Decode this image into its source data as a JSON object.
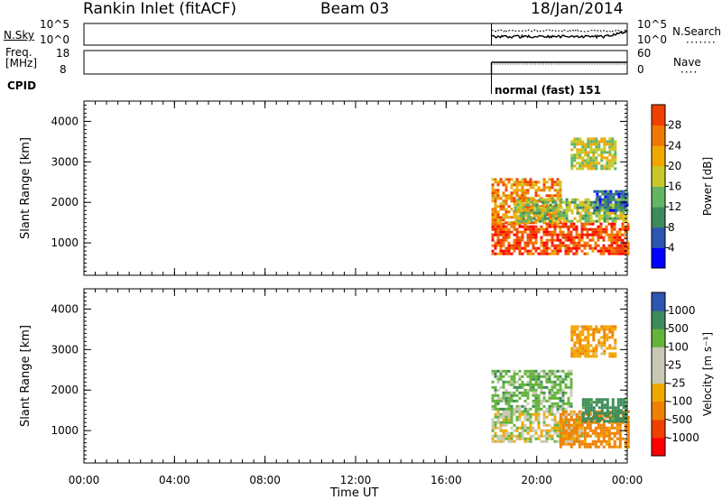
{
  "header": {
    "station": "Rankin Inlet (fitACF)",
    "beam": "Beam 03",
    "date": "18/Jan/2014"
  },
  "noise_panel": {
    "left_label": "N.Sky",
    "right_label": "N.Search",
    "y_ticks_left": [
      "10^5",
      "10^0"
    ],
    "y_ticks_right": [
      "10^5",
      "10^0"
    ]
  },
  "freq_panel": {
    "left_label_line1": "Freq.",
    "left_label_line2": "[MHz]",
    "right_label": "Nave",
    "y_ticks_left": [
      "18",
      "8"
    ],
    "y_ticks_right": [
      "60",
      "0"
    ]
  },
  "cpid_panel": {
    "label": "CPID",
    "mode_text": "normal (fast) 151"
  },
  "x_axis": {
    "label": "Time UT",
    "ticks": [
      "00:00",
      "04:00",
      "08:00",
      "12:00",
      "16:00",
      "20:00",
      "00:00"
    ]
  },
  "y_axis": {
    "label": "Slant Range [km]",
    "ticks": [
      "1000",
      "2000",
      "3000",
      "4000"
    ]
  },
  "colors": {
    "power_scale": [
      "#0000ff",
      "#2c56b0",
      "#3c8c5a",
      "#64b464",
      "#c8c828",
      "#f0a800",
      "#f07800",
      "#f04000",
      "#ff0000"
    ],
    "velocity_scale": [
      "#ff0000",
      "#f04000",
      "#f08000",
      "#f0a800",
      "#c8c8b4",
      "#c8c8b4",
      "#64b43c",
      "#3c8c5a",
      "#2c56b0",
      "#1e3cc8"
    ]
  },
  "chart_data": [
    {
      "type": "heatmap",
      "title": "Power",
      "xlabel": "Time UT",
      "ylabel": "Slant Range [km]",
      "xlim": [
        "00:00",
        "24:00"
      ],
      "ylim": [
        200,
        4500
      ],
      "colorbar": {
        "label": "Power [dB]",
        "ticks": [
          "4",
          "8",
          "12",
          "16",
          "20",
          "24",
          "28"
        ],
        "range": [
          0,
          32
        ]
      },
      "observation_start": "18:00",
      "regions": [
        {
          "t_start": 18.0,
          "t_end": 24.0,
          "r_start": 700,
          "r_end": 1500,
          "value": 26
        },
        {
          "t_start": 18.0,
          "t_end": 21.0,
          "r_start": 1500,
          "r_end": 2600,
          "value": 22
        },
        {
          "t_start": 19.0,
          "t_end": 24.0,
          "r_start": 1500,
          "r_end": 2100,
          "value": 14
        },
        {
          "t_start": 21.5,
          "t_end": 23.5,
          "r_start": 2800,
          "r_end": 3600,
          "value": 16
        },
        {
          "t_start": 22.5,
          "t_end": 24.0,
          "r_start": 1800,
          "r_end": 2300,
          "value": 7
        }
      ]
    },
    {
      "type": "heatmap",
      "title": "Velocity",
      "xlabel": "Time UT",
      "ylabel": "Slant Range [km]",
      "xlim": [
        "00:00",
        "24:00"
      ],
      "ylim": [
        200,
        4500
      ],
      "colorbar": {
        "label": "Velocity [m s⁻¹]",
        "ticks": [
          "-1000",
          "-500",
          "-100",
          "-25",
          "25",
          "100",
          "500",
          "1000"
        ]
      },
      "observation_start": "18:00",
      "regions": [
        {
          "t_start": 18.0,
          "t_end": 22.0,
          "r_start": 700,
          "r_end": 1500,
          "value": 0
        },
        {
          "t_start": 21.0,
          "t_end": 24.0,
          "r_start": 600,
          "r_end": 1500,
          "value": -150
        },
        {
          "t_start": 18.0,
          "t_end": 21.5,
          "r_start": 1500,
          "r_end": 2500,
          "value": 60
        },
        {
          "t_start": 22.0,
          "t_end": 24.0,
          "r_start": 1200,
          "r_end": 1800,
          "value": 150
        },
        {
          "t_start": 21.5,
          "t_end": 23.5,
          "r_start": 2800,
          "r_end": 3600,
          "value": -80
        }
      ]
    }
  ]
}
